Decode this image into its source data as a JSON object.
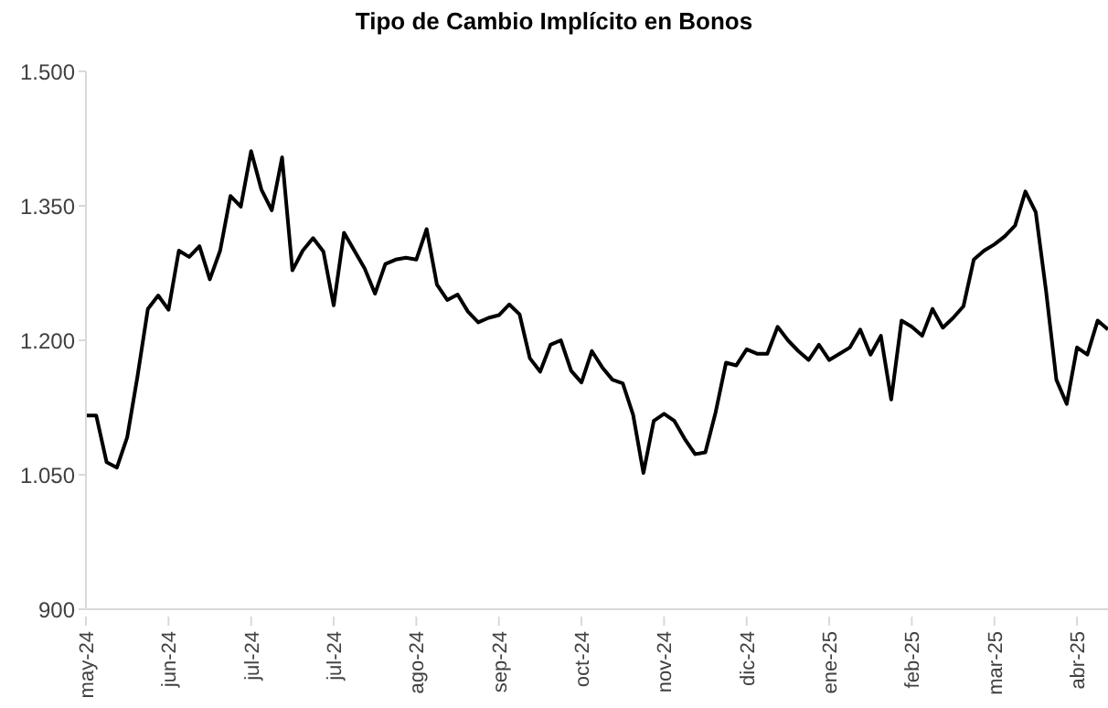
{
  "chart_data": {
    "type": "line",
    "title": "Tipo de Cambio Implícito en Bonos",
    "categories": [
      "may-24",
      null,
      null,
      null,
      null,
      null,
      null,
      null,
      "jun-24",
      null,
      null,
      null,
      null,
      null,
      null,
      null,
      "jul-24",
      null,
      null,
      null,
      null,
      null,
      null,
      null,
      "jul-24",
      null,
      null,
      null,
      null,
      null,
      null,
      null,
      "ago-24",
      null,
      null,
      null,
      null,
      null,
      null,
      null,
      "sep-24",
      null,
      null,
      null,
      null,
      null,
      null,
      null,
      "oct-24",
      null,
      null,
      null,
      null,
      null,
      null,
      null,
      "nov-24",
      null,
      null,
      null,
      null,
      null,
      null,
      null,
      "dic-24",
      null,
      null,
      null,
      null,
      null,
      null,
      null,
      "ene-25",
      null,
      null,
      null,
      null,
      null,
      null,
      null,
      "feb-25",
      null,
      null,
      null,
      null,
      null,
      null,
      null,
      "mar-25",
      null,
      null,
      null,
      null,
      null,
      null,
      null,
      "abr-25",
      null,
      null,
      null
    ],
    "series": [
      {
        "color": "#000000",
        "values": [
          1116,
          1116,
          1064,
          1058,
          1092,
          1160,
          1235,
          1250,
          1234,
          1300,
          1293,
          1305,
          1268,
          1300,
          1361,
          1349,
          1411,
          1368,
          1345,
          1404,
          1278,
          1300,
          1314,
          1299,
          1239,
          1320,
          1300,
          1280,
          1252,
          1285,
          1290,
          1292,
          1290,
          1324,
          1262,
          1245,
          1251,
          1232,
          1220,
          1225,
          1228,
          1240,
          1229,
          1180,
          1165,
          1195,
          1200,
          1166,
          1153,
          1188,
          1170,
          1156,
          1152,
          1117,
          1052,
          1110,
          1118,
          1110,
          1090,
          1073,
          1075,
          1120,
          1175,
          1172,
          1190,
          1185,
          1185,
          1215,
          1200,
          1188,
          1178,
          1195,
          1178,
          1185,
          1192,
          1212,
          1184,
          1205,
          1134,
          1222,
          1215,
          1205,
          1235,
          1214,
          1225,
          1238,
          1290,
          1300,
          1307,
          1316,
          1328,
          1366,
          1343,
          1255,
          1156,
          1129,
          1192,
          1184,
          1222,
          1212
        ]
      }
    ],
    "ylim": [
      900,
      1500
    ],
    "yticks": [
      {
        "value": 900,
        "label": "900"
      },
      {
        "value": 1050,
        "label": "1.050"
      },
      {
        "value": 1200,
        "label": "1.200"
      },
      {
        "value": 1350,
        "label": "1.350"
      },
      {
        "value": 1500,
        "label": "1.500"
      }
    ],
    "grid": false,
    "legend": false,
    "marker": "none",
    "line_style": "solid"
  }
}
